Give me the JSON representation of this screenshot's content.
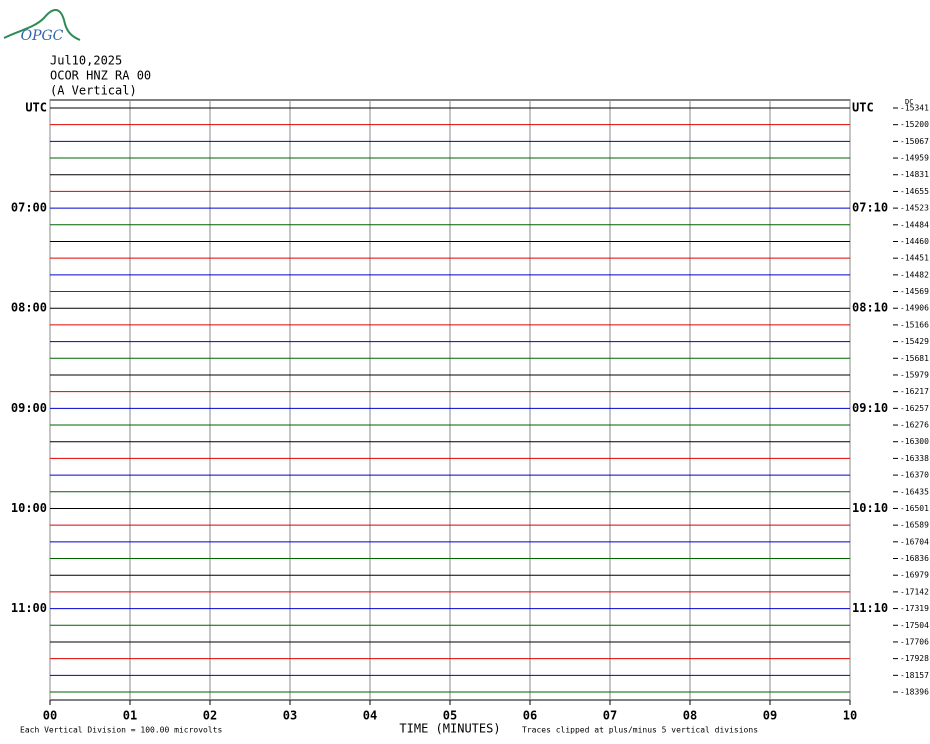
{
  "chart_data": {
    "type": "helicorder",
    "logo": "OPGC",
    "date": "Jul10,2025",
    "station": "OCOR HNZ RA 00",
    "component": "(A Vertical)",
    "dc_label": "DC",
    "xlabel": "TIME (MINUTES)",
    "footer_left": "Each Vertical Division =  100.00 microvolts",
    "footer_right": "Traces clipped at plus/minus 5 vertical divisions",
    "xlim": [
      0,
      10
    ],
    "xticks": [
      {
        "value": 0,
        "label": "00"
      },
      {
        "value": 1,
        "label": "01"
      },
      {
        "value": 2,
        "label": "02"
      },
      {
        "value": 3,
        "label": "03"
      },
      {
        "value": 4,
        "label": "04"
      },
      {
        "value": 5,
        "label": "05"
      },
      {
        "value": 6,
        "label": "06"
      },
      {
        "value": 7,
        "label": "07"
      },
      {
        "value": 8,
        "label": "08"
      },
      {
        "value": 9,
        "label": "09"
      },
      {
        "value": 10,
        "label": "10"
      }
    ],
    "colors": [
      "#000000",
      "#e00000",
      "#0000d0",
      "#006400"
    ],
    "left_times": [
      "UTC",
      null,
      null,
      null,
      null,
      null,
      "07:00",
      null,
      null,
      null,
      null,
      null,
      "08:00",
      null,
      null,
      null,
      null,
      null,
      "09:00",
      null,
      null,
      null,
      null,
      null,
      "10:00",
      null,
      null,
      null,
      null,
      null,
      "11:00",
      null,
      null,
      null,
      null,
      null
    ],
    "right_times": [
      "UTC",
      null,
      null,
      null,
      null,
      null,
      "07:10",
      null,
      null,
      null,
      null,
      null,
      "08:10",
      null,
      null,
      null,
      null,
      null,
      "09:10",
      null,
      null,
      null,
      null,
      null,
      "10:10",
      null,
      null,
      null,
      null,
      null,
      "11:10",
      null,
      null,
      null,
      null,
      null
    ],
    "offsets": [
      -15341,
      -15200,
      -15067,
      -14959,
      -14831,
      -14655,
      -14523,
      -14484,
      -14460,
      -14451,
      -14482,
      -14569,
      -14906,
      -15166,
      -15429,
      -15681,
      -15979,
      -16217,
      -16257,
      -16276,
      -16300,
      -16338,
      -16370,
      -16435,
      -16501,
      -16589,
      -16704,
      -16836,
      -16979,
      -17142,
      -17319,
      -17504,
      -17706,
      -17928,
      -18157,
      -18396
    ]
  }
}
